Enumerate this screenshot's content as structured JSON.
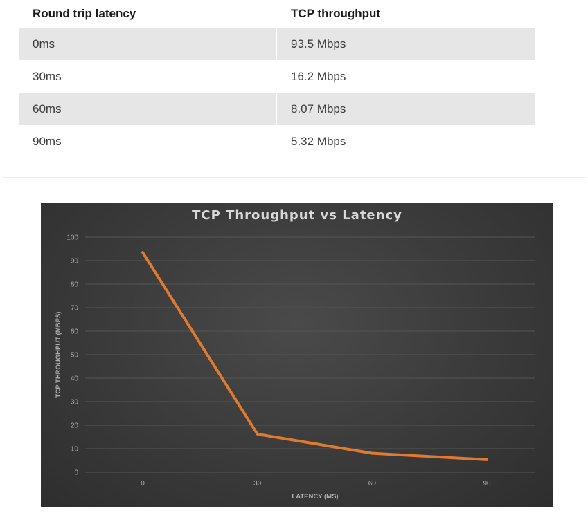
{
  "table": {
    "headers": [
      "Round trip latency",
      "TCP throughput"
    ],
    "rows": [
      [
        "0ms",
        "93.5 Mbps"
      ],
      [
        "30ms",
        "16.2 Mbps"
      ],
      [
        "60ms",
        "8.07 Mbps"
      ],
      [
        "90ms",
        "5.32 Mbps"
      ]
    ]
  },
  "chart_data": {
    "type": "line",
    "title": "TCP Throughput vs Latency",
    "xlabel": "LATENCY (MS)",
    "ylabel": "TCP THROUGHPUT (MBPS)",
    "x": [
      0,
      30,
      60,
      90
    ],
    "series": [
      {
        "values": [
          93.5,
          16.2,
          8.07,
          5.32
        ]
      }
    ],
    "ylim": [
      0,
      100
    ],
    "yticks": [
      "0",
      "10",
      "20",
      "30",
      "40",
      "50",
      "60",
      "70",
      "80",
      "90",
      "100"
    ],
    "xticks": [
      "0",
      "30",
      "60",
      "90"
    ],
    "grid": true,
    "colors": {
      "line": "#e07a2e",
      "background": "#3a3a3a",
      "grid": "#555555",
      "title": "#d9d9d9",
      "ticks": "#b0b0b0"
    }
  }
}
